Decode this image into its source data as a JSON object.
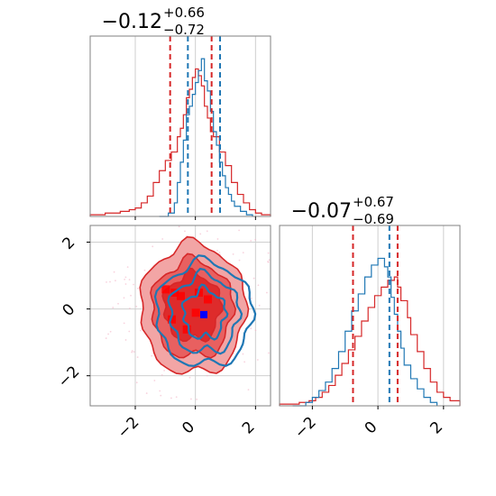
{
  "colors": {
    "red": "#d62728",
    "blue": "#1f77b4",
    "grid": "#cfcfcf",
    "red_fill_outer": "#f2a5a5",
    "red_fill_mid": "#e86060",
    "red_fill_inner": "#de2b2b",
    "marker": "#0000ff"
  },
  "chart_data": [
    {
      "panel": "top-left",
      "type": "histogram",
      "title": {
        "main": "−0.12",
        "sup": "+0.66",
        "sub": "−0.72"
      },
      "xlim": [
        -3.5,
        2.5
      ],
      "grid": true,
      "show_xtick_labels": false,
      "series": [
        {
          "color": "#d62728",
          "stair": [
            [
              -3.5,
              0.01
            ],
            [
              -3.2,
              0.01
            ],
            [
              -3.0,
              0.02
            ],
            [
              -2.7,
              0.02
            ],
            [
              -2.5,
              0.03
            ],
            [
              -2.2,
              0.04
            ],
            [
              -2.0,
              0.05
            ],
            [
              -1.8,
              0.08
            ],
            [
              -1.6,
              0.12
            ],
            [
              -1.4,
              0.2
            ],
            [
              -1.2,
              0.27
            ],
            [
              -1.0,
              0.33
            ],
            [
              -0.8,
              0.38
            ],
            [
              -0.6,
              0.47
            ],
            [
              -0.5,
              0.52
            ],
            [
              -0.4,
              0.6
            ],
            [
              -0.3,
              0.7
            ],
            [
              -0.2,
              0.75
            ],
            [
              -0.1,
              0.82
            ],
            [
              0.0,
              0.87
            ],
            [
              0.1,
              0.83
            ],
            [
              0.2,
              0.77
            ],
            [
              0.3,
              0.65
            ],
            [
              0.4,
              0.58
            ],
            [
              0.5,
              0.5
            ],
            [
              0.6,
              0.47
            ],
            [
              0.8,
              0.38
            ],
            [
              1.0,
              0.3
            ],
            [
              1.2,
              0.2
            ],
            [
              1.4,
              0.13
            ],
            [
              1.6,
              0.08
            ],
            [
              1.8,
              0.04
            ],
            [
              2.0,
              0.02
            ],
            [
              2.2,
              0.01
            ],
            [
              2.5,
              0.01
            ]
          ]
        },
        {
          "color": "#1f77b4",
          "stair": [
            [
              -1.2,
              0.0
            ],
            [
              -0.9,
              0.02
            ],
            [
              -0.7,
              0.08
            ],
            [
              -0.6,
              0.2
            ],
            [
              -0.5,
              0.32
            ],
            [
              -0.4,
              0.45
            ],
            [
              -0.3,
              0.6
            ],
            [
              -0.2,
              0.65
            ],
            [
              -0.1,
              0.72
            ],
            [
              0.0,
              0.79
            ],
            [
              0.1,
              0.86
            ],
            [
              0.2,
              0.93
            ],
            [
              0.3,
              0.8
            ],
            [
              0.4,
              0.74
            ],
            [
              0.5,
              0.62
            ],
            [
              0.6,
              0.5
            ],
            [
              0.7,
              0.42
            ],
            [
              0.8,
              0.32
            ],
            [
              0.9,
              0.24
            ],
            [
              1.0,
              0.17
            ],
            [
              1.1,
              0.13
            ],
            [
              1.2,
              0.09
            ],
            [
              1.3,
              0.06
            ],
            [
              1.5,
              0.03
            ],
            [
              1.7,
              0.01
            ],
            [
              1.9,
              0.0
            ]
          ]
        }
      ],
      "vlines": [
        {
          "x": -0.84,
          "color": "#d62728"
        },
        {
          "x": 0.54,
          "color": "#d62728"
        },
        {
          "x": -0.25,
          "color": "#1f77b4"
        },
        {
          "x": 0.82,
          "color": "#1f77b4"
        }
      ]
    },
    {
      "panel": "bottom-left",
      "type": "contour",
      "xlim": [
        -3.5,
        2.5
      ],
      "ylim": [
        -2.9,
        2.5
      ],
      "grid": true,
      "xticks": [
        -2,
        0,
        2
      ],
      "xtick_labels": [
        "−2",
        "0",
        "2"
      ],
      "yticks": [
        2,
        0,
        -2
      ],
      "ytick_labels": [
        "2",
        "0",
        "−2"
      ],
      "red_levels": [
        {
          "cx": -0.07,
          "cy": 0.0,
          "rx": 1.75,
          "ry": 1.95
        },
        {
          "cx": -0.1,
          "cy": 0.0,
          "rx": 1.35,
          "ry": 1.45
        },
        {
          "cx": -0.1,
          "cy": 0.05,
          "rx": 0.95,
          "ry": 1.0
        }
      ],
      "blue_levels": [
        {
          "cx": 0.3,
          "cy": -0.15,
          "rx": 1.6,
          "ry": 1.55
        },
        {
          "cx": 0.3,
          "cy": -0.15,
          "rx": 1.15,
          "ry": 1.15
        },
        {
          "cx": 0.3,
          "cy": -0.15,
          "rx": 0.7,
          "ry": 0.72
        }
      ],
      "marker": {
        "x": 0.28,
        "y": -0.17
      }
    },
    {
      "panel": "bottom-right",
      "type": "histogram",
      "title": {
        "main": "−0.07",
        "sup": "+0.67",
        "sub": "−0.69"
      },
      "xlim": [
        -3.0,
        2.5
      ],
      "grid": true,
      "xticks": [
        -2,
        0,
        2
      ],
      "xtick_labels": [
        "−2",
        "0",
        "2"
      ],
      "series": [
        {
          "color": "#d62728",
          "stair": [
            [
              -3.0,
              0.01
            ],
            [
              -2.7,
              0.01
            ],
            [
              -2.4,
              0.02
            ],
            [
              -2.1,
              0.03
            ],
            [
              -1.9,
              0.05
            ],
            [
              -1.7,
              0.08
            ],
            [
              -1.5,
              0.12
            ],
            [
              -1.3,
              0.18
            ],
            [
              -1.1,
              0.25
            ],
            [
              -0.9,
              0.33
            ],
            [
              -0.7,
              0.41
            ],
            [
              -0.5,
              0.5
            ],
            [
              -0.3,
              0.58
            ],
            [
              -0.1,
              0.65
            ],
            [
              0.1,
              0.7
            ],
            [
              0.3,
              0.74
            ],
            [
              0.5,
              0.76
            ],
            [
              0.6,
              0.7
            ],
            [
              0.7,
              0.62
            ],
            [
              0.9,
              0.52
            ],
            [
              1.0,
              0.42
            ],
            [
              1.2,
              0.32
            ],
            [
              1.4,
              0.22
            ],
            [
              1.6,
              0.14
            ],
            [
              1.8,
              0.08
            ],
            [
              2.0,
              0.05
            ],
            [
              2.2,
              0.03
            ],
            [
              2.5,
              0.02
            ]
          ]
        },
        {
          "color": "#1f77b4",
          "stair": [
            [
              -2.6,
              0.0
            ],
            [
              -2.2,
              0.02
            ],
            [
              -2.0,
              0.05
            ],
            [
              -1.8,
              0.09
            ],
            [
              -1.6,
              0.14
            ],
            [
              -1.4,
              0.22
            ],
            [
              -1.2,
              0.32
            ],
            [
              -1.0,
              0.44
            ],
            [
              -0.8,
              0.56
            ],
            [
              -0.6,
              0.66
            ],
            [
              -0.4,
              0.76
            ],
            [
              -0.2,
              0.83
            ],
            [
              0.0,
              0.87
            ],
            [
              0.2,
              0.82
            ],
            [
              0.3,
              0.76
            ],
            [
              0.4,
              0.64
            ],
            [
              0.5,
              0.54
            ],
            [
              0.6,
              0.44
            ],
            [
              0.7,
              0.34
            ],
            [
              0.8,
              0.24
            ],
            [
              1.0,
              0.16
            ],
            [
              1.2,
              0.1
            ],
            [
              1.4,
              0.05
            ],
            [
              1.6,
              0.02
            ],
            [
              1.8,
              0.0
            ]
          ]
        }
      ],
      "vlines": [
        {
          "x": -0.76,
          "color": "#d62728"
        },
        {
          "x": 0.6,
          "color": "#d62728"
        },
        {
          "x": 0.35,
          "color": "#1f77b4"
        }
      ]
    }
  ]
}
